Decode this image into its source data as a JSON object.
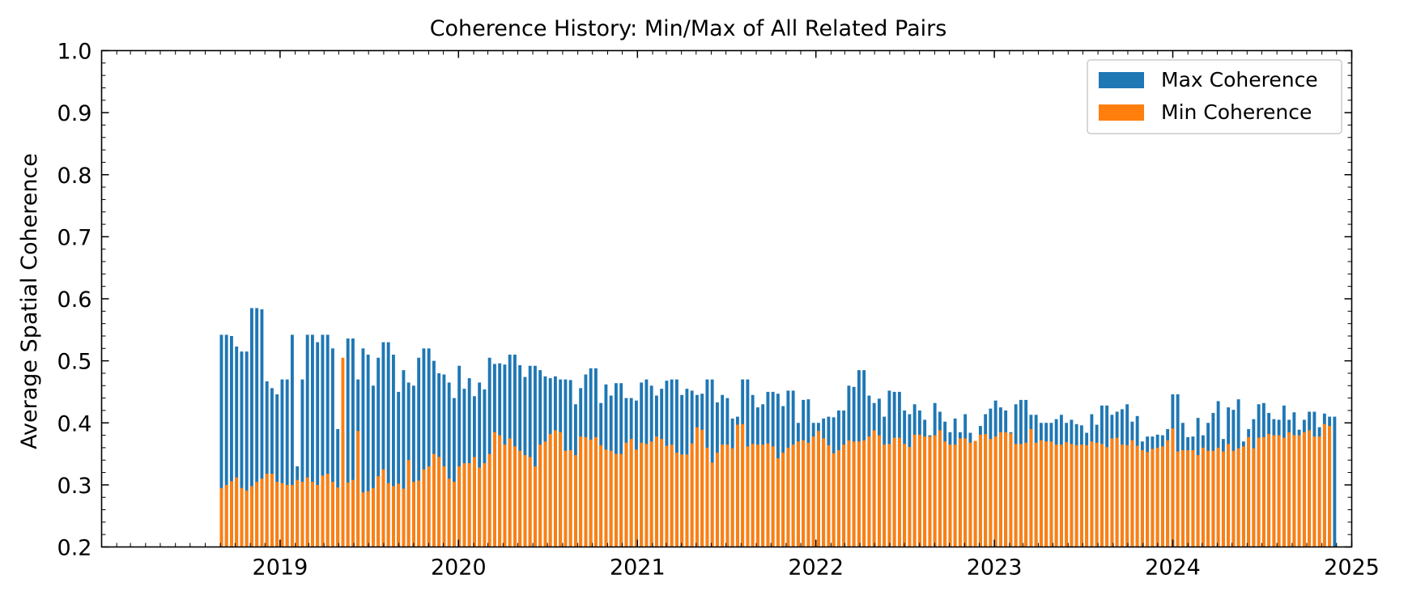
{
  "chart_data": {
    "type": "bar",
    "title": "Coherence History: Min/Max of All Related Pairs",
    "xlabel": "",
    "ylabel": "Average Spatial Coherence",
    "xlim": [
      "2018-01-01",
      "2025-01-01"
    ],
    "ylim": [
      0.2,
      1.0
    ],
    "yticks": [
      "0.2",
      "0.3",
      "0.4",
      "0.5",
      "0.6",
      "0.7",
      "0.8",
      "0.9",
      "1.0"
    ],
    "xticks": [
      "2019",
      "2020",
      "2021",
      "2022",
      "2023",
      "2024",
      "2025"
    ],
    "grid": false,
    "legend_position": "top-right",
    "series": [
      {
        "name": "Max Coherence",
        "color": "#1f77b4",
        "values": [
          0.542,
          0.542,
          0.54,
          0.523,
          0.515,
          0.515,
          0.585,
          0.585,
          0.583,
          0.467,
          0.456,
          0.446,
          0.47,
          0.47,
          0.542,
          0.33,
          0.47,
          0.542,
          0.542,
          0.53,
          0.542,
          0.542,
          0.52,
          0.39,
          0.384,
          0.536,
          0.536,
          0.47,
          0.52,
          0.51,
          0.46,
          0.505,
          0.53,
          0.53,
          0.51,
          0.45,
          0.485,
          0.465,
          0.46,
          0.505,
          0.52,
          0.52,
          0.5,
          0.48,
          0.478,
          0.465,
          0.44,
          0.492,
          0.455,
          0.472,
          0.443,
          0.465,
          0.454,
          0.505,
          0.495,
          0.496,
          0.494,
          0.51,
          0.51,
          0.493,
          0.474,
          0.492,
          0.492,
          0.485,
          0.475,
          0.472,
          0.475,
          0.47,
          0.47,
          0.469,
          0.43,
          0.456,
          0.478,
          0.488,
          0.488,
          0.432,
          0.462,
          0.444,
          0.464,
          0.464,
          0.44,
          0.44,
          0.436,
          0.465,
          0.47,
          0.46,
          0.444,
          0.455,
          0.468,
          0.47,
          0.47,
          0.445,
          0.455,
          0.452,
          0.445,
          0.447,
          0.47,
          0.47,
          0.433,
          0.445,
          0.44,
          0.407,
          0.41,
          0.47,
          0.47,
          0.445,
          0.425,
          0.43,
          0.45,
          0.45,
          0.447,
          0.427,
          0.452,
          0.452,
          0.4,
          0.437,
          0.438,
          0.4,
          0.4,
          0.407,
          0.41,
          0.409,
          0.42,
          0.42,
          0.46,
          0.458,
          0.485,
          0.485,
          0.444,
          0.432,
          0.439,
          0.41,
          0.452,
          0.45,
          0.45,
          0.42,
          0.414,
          0.43,
          0.42,
          0.405,
          0.38,
          0.432,
          0.418,
          0.402,
          0.385,
          0.407,
          0.385,
          0.414,
          0.384,
          0.37,
          0.395,
          0.414,
          0.423,
          0.436,
          0.425,
          0.42,
          0.385,
          0.43,
          0.437,
          0.437,
          0.413,
          0.413,
          0.4,
          0.4,
          0.4,
          0.406,
          0.413,
          0.4,
          0.405,
          0.398,
          0.396,
          0.384,
          0.414,
          0.397,
          0.428,
          0.428,
          0.413,
          0.418,
          0.422,
          0.43,
          0.402,
          0.411,
          0.37,
          0.378,
          0.378,
          0.381,
          0.38,
          0.39,
          0.446,
          0.446,
          0.4,
          0.377,
          0.378,
          0.408,
          0.38,
          0.4,
          0.416,
          0.435,
          0.374,
          0.425,
          0.421,
          0.438,
          0.37,
          0.39,
          0.406,
          0.43,
          0.432,
          0.416,
          0.406,
          0.405,
          0.428,
          0.405,
          0.417,
          0.389,
          0.405,
          0.418,
          0.418,
          0.393,
          0.415,
          0.41,
          0.41
        ]
      },
      {
        "name": "Min Coherence",
        "color": "#ff7f0e",
        "values": [
          0.295,
          0.3,
          0.306,
          0.312,
          0.295,
          0.291,
          0.298,
          0.305,
          0.31,
          0.318,
          0.318,
          0.305,
          0.303,
          0.3,
          0.3,
          0.308,
          0.305,
          0.312,
          0.305,
          0.3,
          0.315,
          0.318,
          0.305,
          0.296,
          0.505,
          0.304,
          0.308,
          0.387,
          0.288,
          0.29,
          0.295,
          0.314,
          0.325,
          0.303,
          0.298,
          0.302,
          0.294,
          0.34,
          0.305,
          0.307,
          0.325,
          0.33,
          0.35,
          0.345,
          0.33,
          0.31,
          0.305,
          0.33,
          0.335,
          0.335,
          0.345,
          0.328,
          0.335,
          0.35,
          0.385,
          0.38,
          0.365,
          0.375,
          0.362,
          0.355,
          0.348,
          0.345,
          0.33,
          0.365,
          0.37,
          0.382,
          0.388,
          0.385,
          0.355,
          0.356,
          0.348,
          0.378,
          0.377,
          0.373,
          0.377,
          0.364,
          0.357,
          0.355,
          0.35,
          0.35,
          0.368,
          0.374,
          0.357,
          0.368,
          0.366,
          0.37,
          0.378,
          0.374,
          0.363,
          0.365,
          0.352,
          0.349,
          0.349,
          0.367,
          0.393,
          0.389,
          0.36,
          0.336,
          0.352,
          0.365,
          0.365,
          0.359,
          0.397,
          0.398,
          0.362,
          0.366,
          0.365,
          0.365,
          0.367,
          0.362,
          0.343,
          0.352,
          0.36,
          0.365,
          0.37,
          0.372,
          0.368,
          0.378,
          0.387,
          0.375,
          0.364,
          0.351,
          0.356,
          0.365,
          0.372,
          0.37,
          0.37,
          0.372,
          0.378,
          0.388,
          0.38,
          0.365,
          0.366,
          0.376,
          0.376,
          0.366,
          0.361,
          0.381,
          0.381,
          0.378,
          0.378,
          0.38,
          0.388,
          0.37,
          0.365,
          0.365,
          0.375,
          0.375,
          0.368,
          0.371,
          0.381,
          0.382,
          0.374,
          0.378,
          0.385,
          0.385,
          0.383,
          0.366,
          0.366,
          0.368,
          0.39,
          0.368,
          0.372,
          0.37,
          0.37,
          0.365,
          0.365,
          0.369,
          0.366,
          0.364,
          0.365,
          0.364,
          0.37,
          0.368,
          0.366,
          0.361,
          0.375,
          0.376,
          0.365,
          0.364,
          0.372,
          0.363,
          0.356,
          0.353,
          0.358,
          0.36,
          0.362,
          0.372,
          0.391,
          0.354,
          0.356,
          0.356,
          0.356,
          0.348,
          0.36,
          0.355,
          0.355,
          0.36,
          0.354,
          0.366,
          0.355,
          0.359,
          0.362,
          0.377,
          0.359,
          0.376,
          0.377,
          0.382,
          0.38,
          0.38,
          0.376,
          0.385,
          0.38,
          0.38,
          0.385,
          0.388,
          0.378,
          0.378,
          0.398,
          0.395
        ]
      }
    ]
  }
}
